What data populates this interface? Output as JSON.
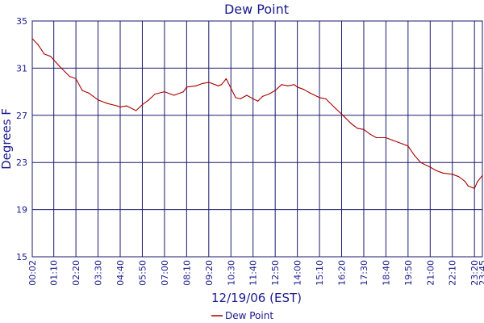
{
  "chart_data": {
    "type": "line",
    "title": "Dew Point",
    "xlabel": "12/19/06 (EST)",
    "ylabel": "Degrees F",
    "ylim": [
      15,
      35
    ],
    "yticks": [
      15,
      19,
      23,
      27,
      31,
      35
    ],
    "xlim": [
      "00:02",
      "23:45"
    ],
    "xticks": [
      "00:02",
      "01:10",
      "02:20",
      "03:30",
      "04:40",
      "05:50",
      "07:00",
      "08:10",
      "09:20",
      "10:30",
      "11:40",
      "12:50",
      "14:00",
      "15:10",
      "16:20",
      "17:30",
      "18:40",
      "19:50",
      "21:00",
      "22:10",
      "23:20",
      "23:45"
    ],
    "grid": true,
    "legend_position": "bottom-center",
    "colors": {
      "series": "#aa0000",
      "grid": "#1a1a6e",
      "text": "#1a1a8c",
      "axis": "#000000"
    },
    "series": [
      {
        "name": "Dew Point",
        "x": [
          "00:02",
          "00:20",
          "00:40",
          "01:00",
          "01:10",
          "01:30",
          "02:00",
          "02:20",
          "02:40",
          "03:00",
          "03:30",
          "04:00",
          "04:30",
          "04:40",
          "05:00",
          "05:30",
          "05:50",
          "06:10",
          "06:30",
          "07:00",
          "07:30",
          "08:00",
          "08:10",
          "08:40",
          "09:00",
          "09:20",
          "09:50",
          "10:00",
          "10:15",
          "10:30",
          "10:45",
          "11:00",
          "11:20",
          "11:40",
          "11:55",
          "12:10",
          "12:30",
          "12:50",
          "13:10",
          "13:30",
          "13:50",
          "14:00",
          "14:20",
          "14:40",
          "15:10",
          "15:30",
          "16:00",
          "16:20",
          "16:50",
          "17:10",
          "17:30",
          "17:50",
          "18:10",
          "18:40",
          "19:00",
          "19:20",
          "19:50",
          "20:10",
          "20:30",
          "21:00",
          "21:20",
          "21:40",
          "22:10",
          "22:30",
          "22:50",
          "23:00",
          "23:20",
          "23:30",
          "23:45"
        ],
        "values": [
          33.5,
          33.0,
          32.2,
          32.0,
          31.7,
          31.1,
          30.3,
          30.1,
          29.1,
          28.9,
          28.3,
          28.0,
          27.8,
          27.7,
          27.8,
          27.4,
          27.9,
          28.3,
          28.8,
          29.0,
          28.7,
          29.0,
          29.4,
          29.5,
          29.7,
          29.8,
          29.5,
          29.6,
          30.1,
          29.3,
          28.5,
          28.4,
          28.7,
          28.4,
          28.2,
          28.6,
          28.8,
          29.1,
          29.6,
          29.5,
          29.6,
          29.4,
          29.2,
          28.9,
          28.5,
          28.4,
          27.6,
          27.1,
          26.3,
          25.9,
          25.8,
          25.4,
          25.1,
          25.1,
          24.9,
          24.7,
          24.4,
          23.6,
          23.0,
          22.6,
          22.3,
          22.1,
          22.0,
          21.8,
          21.4,
          21.0,
          20.8,
          21.4,
          21.9
        ]
      }
    ]
  }
}
